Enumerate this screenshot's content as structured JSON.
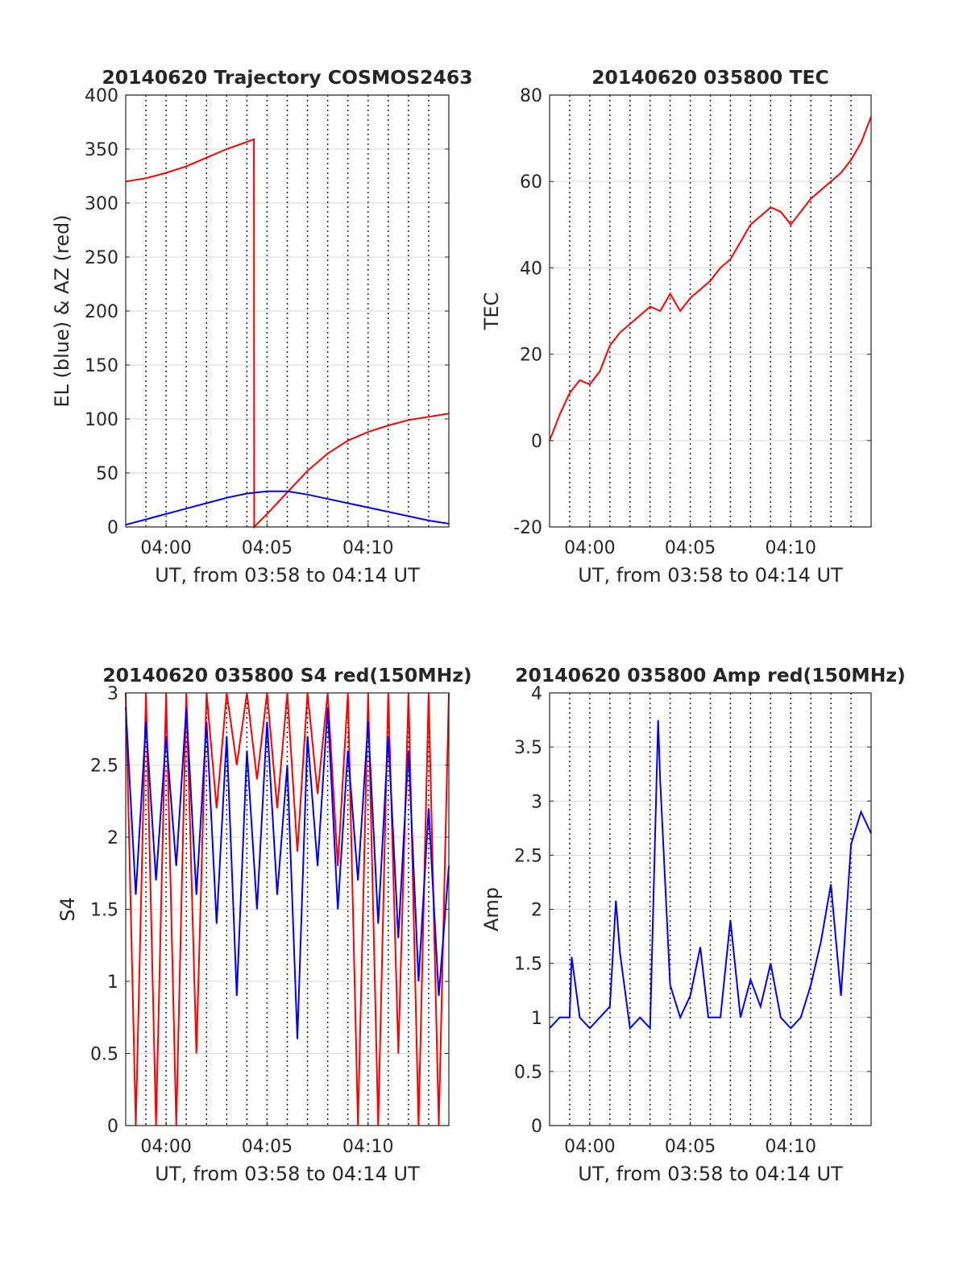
{
  "colors": {
    "elevation": "#0000ff",
    "azimuth": "#ff0000",
    "tec": "#ff0000",
    "s4_red": "#ff0000",
    "s4_blue": "#0000ff",
    "amp": "#0000ff",
    "axis": "#262626",
    "grid": "#dddddd"
  },
  "chart_data": [
    {
      "id": "trajectory",
      "type": "line",
      "title": "20140620 Trajectory COSMOS2463",
      "xlabel": "UT, from 03:58 to 04:14 UT",
      "ylabel": "EL (blue) & AZ (red)",
      "xlim": [
        0,
        16
      ],
      "ylim": [
        0,
        400
      ],
      "xticks": [
        {
          "x": 2,
          "label": "04:00"
        },
        {
          "x": 7,
          "label": "04:05"
        },
        {
          "x": 12,
          "label": "04:10"
        }
      ],
      "yticks": [
        {
          "v": 0,
          "label": "0"
        },
        {
          "v": 50,
          "label": "50"
        },
        {
          "v": 100,
          "label": "100"
        },
        {
          "v": 150,
          "label": "150"
        },
        {
          "v": 200,
          "label": "200"
        },
        {
          "v": 250,
          "label": "250"
        },
        {
          "v": 300,
          "label": "300"
        },
        {
          "v": 350,
          "label": "350"
        },
        {
          "v": 400,
          "label": "400"
        }
      ],
      "grid": true,
      "series": [
        {
          "color": "#ff0000",
          "x": [
            0,
            1,
            2,
            3,
            4,
            5,
            6.35,
            6.36,
            7,
            8,
            9,
            10,
            11,
            12,
            13,
            14,
            15,
            16
          ],
          "values": [
            320,
            323,
            328,
            334,
            342,
            350,
            359,
            0,
            12,
            32,
            52,
            68,
            80,
            88,
            94,
            99,
            102,
            105
          ]
        },
        {
          "color": "#0000ff",
          "x": [
            0,
            1,
            2,
            3,
            4,
            5,
            6,
            7,
            8,
            9,
            10,
            11,
            12,
            13,
            14,
            15,
            16
          ],
          "values": [
            2,
            7,
            12,
            17,
            22,
            27,
            31,
            33,
            33,
            30,
            26,
            22,
            18,
            14,
            10,
            6,
            3
          ]
        }
      ]
    },
    {
      "id": "tec",
      "type": "line",
      "title": "20140620 035800 TEC",
      "xlabel": "UT, from 03:58 to 04:14 UT",
      "ylabel": "TEC",
      "xlim": [
        0,
        16
      ],
      "ylim": [
        -20,
        80
      ],
      "xticks": [
        {
          "x": 2,
          "label": "04:00"
        },
        {
          "x": 7,
          "label": "04:05"
        },
        {
          "x": 12,
          "label": "04:10"
        }
      ],
      "yticks": [
        {
          "v": -20,
          "label": "-20"
        },
        {
          "v": 0,
          "label": "0"
        },
        {
          "v": 20,
          "label": "20"
        },
        {
          "v": 40,
          "label": "40"
        },
        {
          "v": 60,
          "label": "60"
        },
        {
          "v": 80,
          "label": "80"
        }
      ],
      "grid": true,
      "series": [
        {
          "color": "#ff0000",
          "x": [
            0,
            0.5,
            1,
            1.5,
            2,
            2.5,
            3,
            3.5,
            4,
            4.5,
            5,
            5.5,
            6,
            6.5,
            7,
            7.5,
            8,
            8.5,
            9,
            9.5,
            10,
            10.5,
            11,
            11.5,
            12,
            12.5,
            13,
            13.5,
            14,
            14.5,
            15,
            15.5,
            16
          ],
          "values": [
            0,
            6,
            11,
            14,
            13,
            16,
            22,
            25,
            27,
            29,
            31,
            30,
            34,
            30,
            33,
            35,
            37,
            40,
            42,
            46,
            50,
            52,
            54,
            53,
            50,
            53,
            56,
            58,
            60,
            62,
            65,
            69,
            75
          ]
        }
      ]
    },
    {
      "id": "s4",
      "type": "line",
      "title": "20140620 035800 S4 red(150MHz)",
      "xlabel": "UT, from 03:58 to 04:14 UT",
      "ylabel": "S4",
      "xlim": [
        0,
        16
      ],
      "ylim": [
        0,
        3
      ],
      "xticks": [
        {
          "x": 2,
          "label": "04:00"
        },
        {
          "x": 7,
          "label": "04:05"
        },
        {
          "x": 12,
          "label": "04:10"
        }
      ],
      "yticks": [
        {
          "v": 0,
          "label": "0"
        },
        {
          "v": 0.5,
          "label": "0.5"
        },
        {
          "v": 1,
          "label": "1"
        },
        {
          "v": 1.5,
          "label": "1.5"
        },
        {
          "v": 2,
          "label": "2"
        },
        {
          "v": 2.5,
          "label": "2.5"
        },
        {
          "v": 3,
          "label": "3"
        }
      ],
      "grid": true,
      "series": [
        {
          "color": "#ff0000",
          "x": [
            0,
            0.5,
            1,
            1.5,
            2,
            2.5,
            3,
            3.5,
            4,
            4.5,
            5,
            5.5,
            6,
            6.5,
            7,
            7.5,
            8,
            8.5,
            9,
            9.5,
            10,
            10.5,
            11,
            11.5,
            12,
            12.5,
            13,
            13.5,
            14,
            14.5,
            15,
            15.5,
            16
          ],
          "values": [
            3,
            0,
            3,
            0,
            3,
            0,
            3,
            0.5,
            3,
            2.2,
            3,
            2.5,
            3,
            2.4,
            3,
            2.2,
            3,
            1.9,
            3,
            2.3,
            3,
            1.8,
            3,
            0,
            3,
            0,
            3,
            0.5,
            3,
            0,
            3,
            0,
            3
          ]
        },
        {
          "color": "#0000ff",
          "x": [
            0,
            0.5,
            1,
            1.5,
            2,
            2.5,
            3,
            3.5,
            4,
            4.5,
            5,
            5.5,
            6,
            6.5,
            7,
            7.5,
            8,
            8.5,
            9,
            9.5,
            10,
            10.5,
            11,
            11.5,
            12,
            12.5,
            13,
            13.5,
            14,
            14.5,
            15,
            15.5,
            16
          ],
          "values": [
            2.9,
            1.6,
            2.8,
            1.7,
            2.7,
            1.8,
            2.9,
            1.6,
            2.8,
            1.4,
            2.7,
            0.9,
            2.6,
            1.5,
            2.8,
            1.6,
            2.5,
            0.6,
            2.7,
            1.8,
            2.9,
            1.5,
            2.6,
            1.7,
            2.8,
            1.4,
            2.7,
            1.3,
            2.6,
            1.0,
            2.2,
            0.9,
            1.8
          ]
        }
      ]
    },
    {
      "id": "amp",
      "type": "line",
      "title": "20140620 035800 Amp red(150MHz)",
      "xlabel": "UT, from 03:58 to 04:14 UT",
      "ylabel": "Amp",
      "xlim": [
        0,
        16
      ],
      "ylim": [
        0,
        4
      ],
      "xticks": [
        {
          "x": 2,
          "label": "04:00"
        },
        {
          "x": 7,
          "label": "04:05"
        },
        {
          "x": 12,
          "label": "04:10"
        }
      ],
      "yticks": [
        {
          "v": 0,
          "label": "0"
        },
        {
          "v": 0.5,
          "label": "0.5"
        },
        {
          "v": 1,
          "label": "1"
        },
        {
          "v": 1.5,
          "label": "1.5"
        },
        {
          "v": 2,
          "label": "2"
        },
        {
          "v": 2.5,
          "label": "2.5"
        },
        {
          "v": 3,
          "label": "3"
        },
        {
          "v": 3.5,
          "label": "3.5"
        },
        {
          "v": 4,
          "label": "4"
        }
      ],
      "grid": true,
      "series": [
        {
          "color": "#0000ff",
          "x": [
            0,
            0.5,
            1,
            1.1,
            1.5,
            2,
            3,
            3.3,
            3.5,
            4,
            4.5,
            5,
            5.4,
            5.5,
            6,
            6.5,
            7,
            7.5,
            7.9,
            8.5,
            9,
            9.5,
            10,
            10.5,
            11,
            11.5,
            12,
            12.5,
            13,
            13.5,
            14,
            14.5,
            15,
            15.5,
            16
          ],
          "values": [
            0.9,
            1.0,
            1.0,
            1.56,
            1.0,
            0.9,
            1.1,
            2.08,
            1.6,
            0.9,
            1.0,
            0.9,
            3.75,
            3.2,
            1.3,
            1.0,
            1.2,
            1.65,
            1.0,
            1.0,
            1.9,
            1.0,
            1.35,
            1.1,
            1.5,
            1.0,
            0.9,
            1.0,
            1.3,
            1.7,
            2.23,
            1.2,
            2.6,
            2.9,
            2.7
          ]
        }
      ]
    }
  ]
}
